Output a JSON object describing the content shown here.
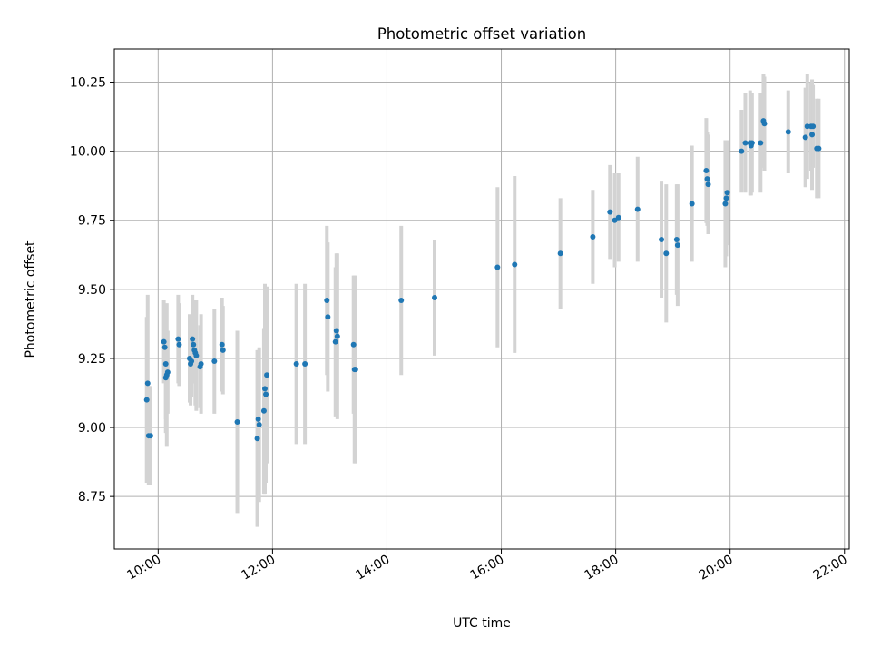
{
  "chart_data": {
    "type": "scatter",
    "title": "Photometric offset variation",
    "xlabel": "UTC time",
    "ylabel": "Photometric offset",
    "x_is_time": true,
    "xlim": [
      "09:14",
      "22:05"
    ],
    "ylim": [
      8.56,
      10.37
    ],
    "x_ticks": [
      "10:00",
      "12:00",
      "14:00",
      "16:00",
      "18:00",
      "20:00",
      "22:00"
    ],
    "y_ticks": [
      "8.75",
      "9.00",
      "9.25",
      "9.50",
      "9.75",
      "10.00",
      "10.25"
    ],
    "grid": true,
    "colors": {
      "point": "#1f77b4",
      "errorbar": "#d3d3d3",
      "grid": "#b0b0b0"
    },
    "series": [
      {
        "x": [
          "09:48",
          "09:49",
          "09:50",
          "09:52",
          "10:06",
          "10:07",
          "10:08",
          "10:08",
          "10:09",
          "10:10",
          "10:21",
          "10:22",
          "10:33",
          "10:34",
          "10:35",
          "10:36",
          "10:37",
          "10:38",
          "10:39",
          "10:40",
          "10:44",
          "10:45",
          "10:59",
          "11:07",
          "11:08",
          "11:23",
          "11:44",
          "11:45",
          "11:46",
          "11:51",
          "11:52",
          "11:53",
          "11:54",
          "12:25",
          "12:34",
          "12:57",
          "12:58",
          "13:06",
          "13:07",
          "13:08",
          "13:25",
          "13:26",
          "13:27",
          "14:15",
          "14:50",
          "15:56",
          "16:14",
          "17:02",
          "17:36",
          "17:54",
          "17:59",
          "18:03",
          "18:23",
          "18:48",
          "18:53",
          "19:04",
          "19:05",
          "19:20",
          "19:35",
          "19:36",
          "19:37",
          "19:55",
          "19:56",
          "19:57",
          "20:12",
          "20:16",
          "20:21",
          "20:22",
          "20:23",
          "20:32",
          "20:35",
          "20:36",
          "21:01",
          "21:19",
          "21:21",
          "21:25",
          "21:26",
          "21:27",
          "21:31",
          "21:33"
        ],
        "y": [
          9.1,
          9.16,
          8.97,
          8.97,
          9.31,
          9.29,
          9.23,
          9.18,
          9.19,
          9.2,
          9.32,
          9.3,
          9.25,
          9.23,
          9.24,
          9.32,
          9.3,
          9.28,
          9.27,
          9.26,
          9.22,
          9.23,
          9.24,
          9.3,
          9.28,
          9.02,
          8.96,
          9.03,
          9.01,
          9.06,
          9.14,
          9.12,
          9.19,
          9.23,
          9.23,
          9.46,
          9.4,
          9.31,
          9.35,
          9.33,
          9.3,
          9.21,
          9.21,
          9.46,
          9.47,
          9.58,
          9.59,
          9.63,
          9.69,
          9.78,
          9.75,
          9.76,
          9.79,
          9.68,
          9.63,
          9.68,
          9.66,
          9.81,
          9.93,
          9.9,
          9.88,
          9.81,
          9.83,
          9.85,
          10.0,
          10.03,
          10.03,
          10.02,
          10.03,
          10.03,
          10.11,
          10.1,
          10.07,
          10.05,
          10.09,
          10.09,
          10.06,
          10.09,
          10.01,
          10.01
        ],
        "err": [
          0.3,
          0.32,
          0.18,
          0.18,
          0.15,
          0.12,
          0.2,
          0.2,
          0.26,
          0.15,
          0.16,
          0.15,
          0.16,
          0.15,
          0.13,
          0.16,
          0.14,
          0.12,
          0.19,
          0.2,
          0.15,
          0.18,
          0.19,
          0.17,
          0.16,
          0.33,
          0.32,
          0.25,
          0.28,
          0.3,
          0.38,
          0.32,
          0.32,
          0.29,
          0.29,
          0.27,
          0.27,
          0.27,
          0.28,
          0.3,
          0.25,
          0.34,
          0.34,
          0.27,
          0.21,
          0.29,
          0.32,
          0.2,
          0.17,
          0.17,
          0.17,
          0.16,
          0.19,
          0.21,
          0.25,
          0.2,
          0.22,
          0.21,
          0.19,
          0.17,
          0.18,
          0.23,
          0.21,
          0.19,
          0.15,
          0.18,
          0.19,
          0.18,
          0.18,
          0.18,
          0.17,
          0.17,
          0.15,
          0.18,
          0.19,
          0.16,
          0.2,
          0.15,
          0.18,
          0.18
        ]
      }
    ]
  }
}
